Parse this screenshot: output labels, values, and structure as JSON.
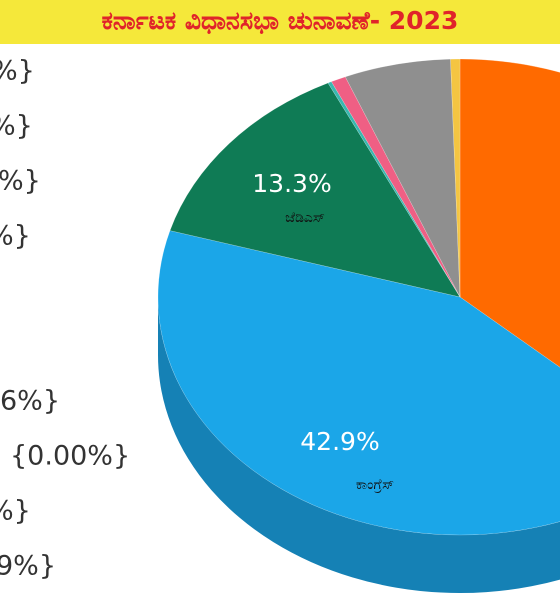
{
  "chart_data": {
    "type": "pie3d",
    "title": "ಕರ್ನಾಟಕ ವಿಧಾನಸಭಾ ಚುನಾವಣೆ- 2023",
    "categories": [
      null,
      "ಕಾಂಗ್ರೆಸ್",
      "ಜೆಡಿಎಸ್",
      null,
      null,
      null,
      null
    ],
    "values": [
      36.6,
      42.9,
      13.3,
      0.2,
      0.8,
      5.7,
      0.5
    ],
    "value_labels": [
      null,
      "42.9%",
      "13.3%",
      null,
      null,
      null,
      null
    ],
    "colors": [
      "#ff6a00",
      "#1ba6e8",
      "#0f7b55",
      "#39b8b0",
      "#ef5f84",
      "#8f8f8f",
      "#f4c542"
    ],
    "legend_fragments": [
      "%}",
      "%}",
      "%}",
      "%}",
      "}",
      "6%}",
      "{0.00%}",
      "%}",
      "9%}"
    ]
  }
}
